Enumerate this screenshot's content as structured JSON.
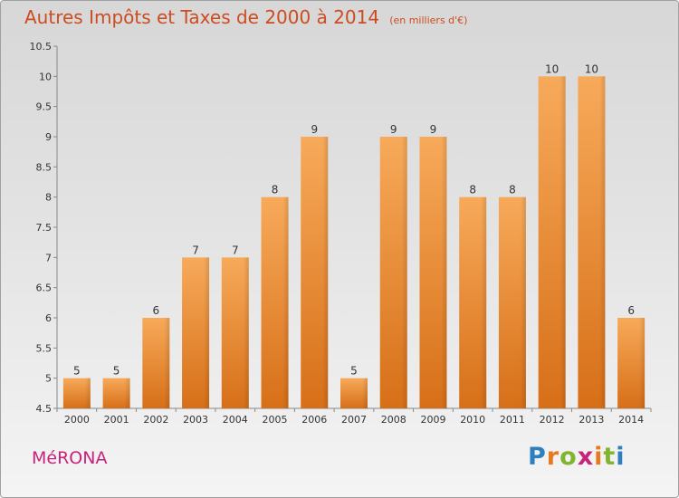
{
  "header": {
    "title": "Autres Impôts et Taxes de 2000 à 2014",
    "unit": "(en milliers d'€)"
  },
  "footer": {
    "commune": "MéRONA",
    "logo_letters": [
      {
        "char": "P",
        "color": "#2d7fc0"
      },
      {
        "char": "r",
        "color": "#e8791e"
      },
      {
        "char": "o",
        "color": "#7fb52f"
      },
      {
        "char": "x",
        "color": "#c8237a"
      },
      {
        "char": "i",
        "color": "#e8791e"
      },
      {
        "char": "t",
        "color": "#7fb52f"
      },
      {
        "char": "i",
        "color": "#2d7fc0"
      }
    ]
  },
  "colors": {
    "bar_top": "#f7aa5a",
    "bar_bottom": "#d76f18",
    "title": "#cc4c20",
    "commune": "#c8237a"
  },
  "chart_data": {
    "type": "bar",
    "title": "Autres Impôts et Taxes de 2000 à 2014",
    "subtitle": "(en milliers d'€)",
    "categories": [
      "2000",
      "2001",
      "2002",
      "2003",
      "2004",
      "2005",
      "2006",
      "2007",
      "2008",
      "2009",
      "2010",
      "2011",
      "2012",
      "2013",
      "2014"
    ],
    "values": [
      5,
      5,
      6,
      7,
      7,
      8,
      9,
      5,
      9,
      9,
      8,
      8,
      10,
      10,
      6
    ],
    "ylim": [
      4.5,
      10.5
    ],
    "yticks": [
      "4.5",
      "5",
      "5.5",
      "6",
      "6.5",
      "7",
      "7.5",
      "8",
      "8.5",
      "9",
      "9.5",
      "10",
      "10.5"
    ],
    "xlabel": "",
    "ylabel": "",
    "grid": false,
    "data_labels": true
  }
}
